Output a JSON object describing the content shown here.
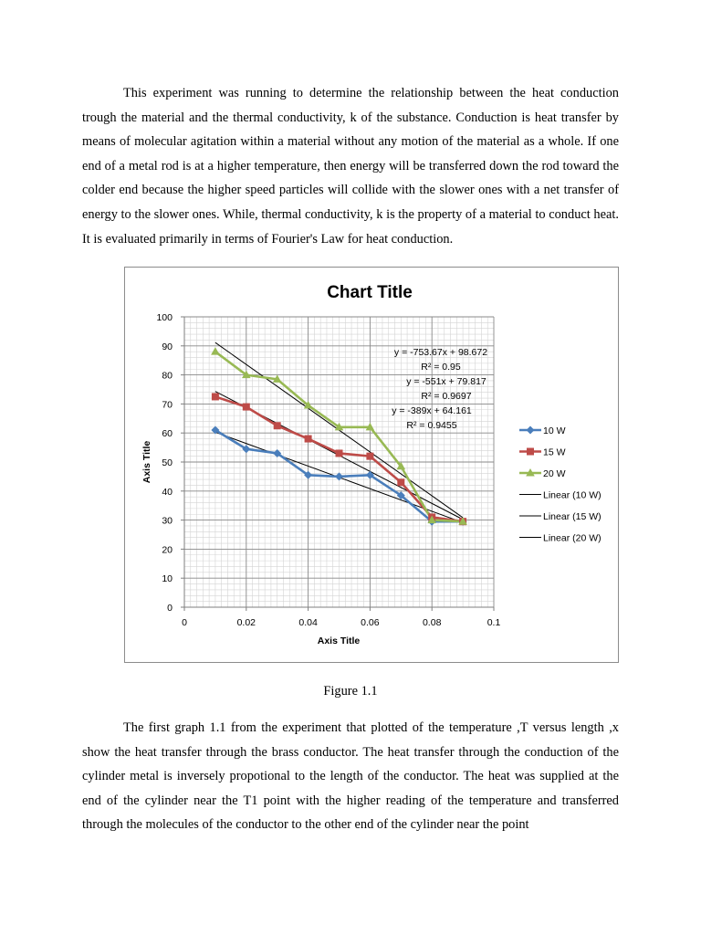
{
  "paragraphs": [
    "This experiment was running to determine the relationship between the heat conduction trough the material and the thermal conductivity, k of the substance. Conduction is heat transfer by means of molecular agitation within a material without any motion of the material as a whole. If one end of a metal rod is at a higher temperature, then energy will be transferred down the rod toward the colder end because the higher speed particles will collide with the slower ones with a net transfer of energy to the slower ones. While, thermal conductivity, k is the property of a material to conduct heat. It is evaluated primarily in terms of Fourier's Law for heat conduction.",
    "The first graph 1.1 from the experiment that plotted of the temperature ,T versus length ,x show the heat transfer through the brass conductor. The heat transfer through the conduction of the cylinder metal is inversely propotional to the length of the conductor. The heat was supplied at the end of the cylinder near the T1 point with the higher reading of the temperature and transferred through the molecules of the conductor to the other end of the cylinder near the point"
  ],
  "figure_caption": "Figure 1.1",
  "chart_data": {
    "type": "scatter",
    "title": "Chart Title",
    "xlabel": "Axis Title",
    "ylabel": "Axis Title",
    "xlim": [
      0,
      0.1
    ],
    "ylim": [
      0,
      100
    ],
    "x_ticks": [
      "0",
      "0.02",
      "0.04",
      "0.06",
      "0.08",
      "0.1"
    ],
    "y_ticks": [
      "0",
      "10",
      "20",
      "30",
      "40",
      "50",
      "60",
      "70",
      "80",
      "90",
      "100"
    ],
    "grid": true,
    "legend_position": "right",
    "series": [
      {
        "name": "10 W",
        "color": "#4a7ebb",
        "marker": "diamond",
        "x": [
          0.01,
          0.02,
          0.03,
          0.04,
          0.05,
          0.06,
          0.07,
          0.08,
          0.09
        ],
        "y": [
          61,
          54.5,
          53,
          45.5,
          45,
          45.5,
          38.5,
          29.5,
          29.5
        ]
      },
      {
        "name": "15 W",
        "color": "#be4b48",
        "marker": "square",
        "x": [
          0.01,
          0.02,
          0.03,
          0.04,
          0.05,
          0.06,
          0.07,
          0.08,
          0.09
        ],
        "y": [
          72.5,
          69,
          62.5,
          58,
          53,
          52,
          43,
          31,
          29.5
        ]
      },
      {
        "name": "20 W",
        "color": "#98b954",
        "marker": "triangle",
        "x": [
          0.01,
          0.02,
          0.03,
          0.04,
          0.05,
          0.06,
          0.07,
          0.08,
          0.09
        ],
        "y": [
          88,
          80,
          78.5,
          69.5,
          62,
          62,
          48.5,
          30,
          29.5
        ]
      }
    ],
    "trendlines": [
      {
        "name": "Linear (10 W)",
        "slope": -389,
        "intercept": 64.161,
        "x_range": [
          0.01,
          0.09
        ],
        "equation": "y = -389x + 64.161",
        "r2": "R² = 0.9455"
      },
      {
        "name": "Linear (15 W)",
        "slope": -551,
        "intercept": 79.817,
        "x_range": [
          0.01,
          0.09
        ],
        "equation": "y = -551x + 79.817",
        "r2": "R² = 0.9697"
      },
      {
        "name": "Linear (20 W)",
        "slope": -753.67,
        "intercept": 98.672,
        "x_range": [
          0.01,
          0.09
        ],
        "equation": "y = -753.67x + 98.672",
        "r2": "R² = 0.95"
      }
    ]
  }
}
